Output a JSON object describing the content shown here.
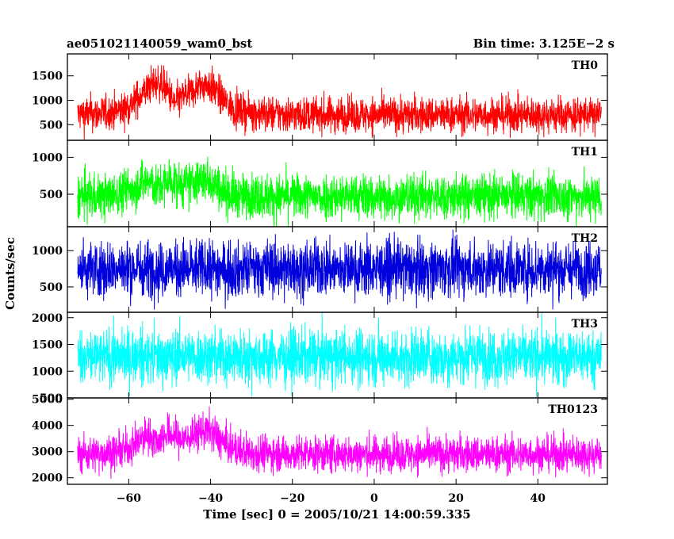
{
  "chart_data": {
    "type": "line",
    "title_left": "ae051021140059_wam0_bst",
    "title_right": "Bin time: 3.125E−2 s",
    "xlabel": "Time [sec] 0 = 2005/10/21 14:00:59.335",
    "ylabel": "Counts/sec",
    "xlim": [
      -75,
      57
    ],
    "x_ticks": [
      -60,
      -40,
      -20,
      0,
      20,
      40
    ],
    "x_tick_labels": [
      "−60",
      "−40",
      "−20",
      "0",
      "20",
      "40"
    ],
    "x_data_range": [
      -72.5,
      55.5
    ],
    "bin_time": 0.03125,
    "grid": false,
    "panels": [
      {
        "name": "TH0",
        "color": "#ff0000",
        "ylim": [
          180,
          1950
        ],
        "y_ticks": [
          500,
          1000,
          1500
        ],
        "y_tick_labels": [
          "500",
          "1000",
          "1500"
        ],
        "baseline": 700,
        "spread": 180,
        "features": [
          {
            "type": "bump",
            "x": -53,
            "width": 4,
            "amplitude": 500
          },
          {
            "type": "bump",
            "x": -41,
            "width": 3,
            "amplitude": 450
          },
          {
            "type": "bump",
            "x": -46,
            "width": 10,
            "amplitude": 200
          },
          {
            "type": "dip",
            "x": -49,
            "width": 1.2,
            "amplitude": 250
          }
        ]
      },
      {
        "name": "TH1",
        "color": "#00ff00",
        "ylim": [
          60,
          1230
        ],
        "y_ticks": [
          500,
          1000
        ],
        "y_tick_labels": [
          "500",
          "1000"
        ],
        "baseline": 470,
        "spread": 150,
        "features": [
          {
            "type": "bump",
            "x": -53,
            "width": 5,
            "amplitude": 250
          },
          {
            "type": "bump",
            "x": -41,
            "width": 3,
            "amplitude": 220
          },
          {
            "type": "dip",
            "x": -53,
            "width": 1.2,
            "amplitude": 150
          }
        ]
      },
      {
        "name": "TH2",
        "color": "#0000dd",
        "ylim": [
          150,
          1330
        ],
        "y_ticks": [
          500,
          1000
        ],
        "y_tick_labels": [
          "500",
          "1000"
        ],
        "baseline": 750,
        "spread": 190,
        "features": []
      },
      {
        "name": "TH3",
        "color": "#00ffff",
        "ylim": [
          500,
          2100
        ],
        "y_ticks": [
          500,
          1000,
          1500,
          2000
        ],
        "y_tick_labels": [
          "500",
          "1000",
          "1500",
          "2000"
        ],
        "baseline": 1270,
        "spread": 250,
        "features": []
      },
      {
        "name": "TH0123",
        "color": "#ff00ff",
        "ylim": [
          1750,
          5050
        ],
        "y_ticks": [
          2000,
          3000,
          4000,
          5000
        ],
        "y_tick_labels": [
          "2000",
          "3000",
          "4000",
          "5000"
        ],
        "baseline": 2900,
        "spread": 340,
        "features": [
          {
            "type": "bump",
            "x": -53,
            "width": 4,
            "amplitude": 700
          },
          {
            "type": "bump",
            "x": -41,
            "width": 3,
            "amplitude": 650
          },
          {
            "type": "bump",
            "x": -46,
            "width": 10,
            "amplitude": 280
          },
          {
            "type": "dip",
            "x": -53,
            "width": 1.2,
            "amplitude": 400
          }
        ]
      }
    ]
  }
}
